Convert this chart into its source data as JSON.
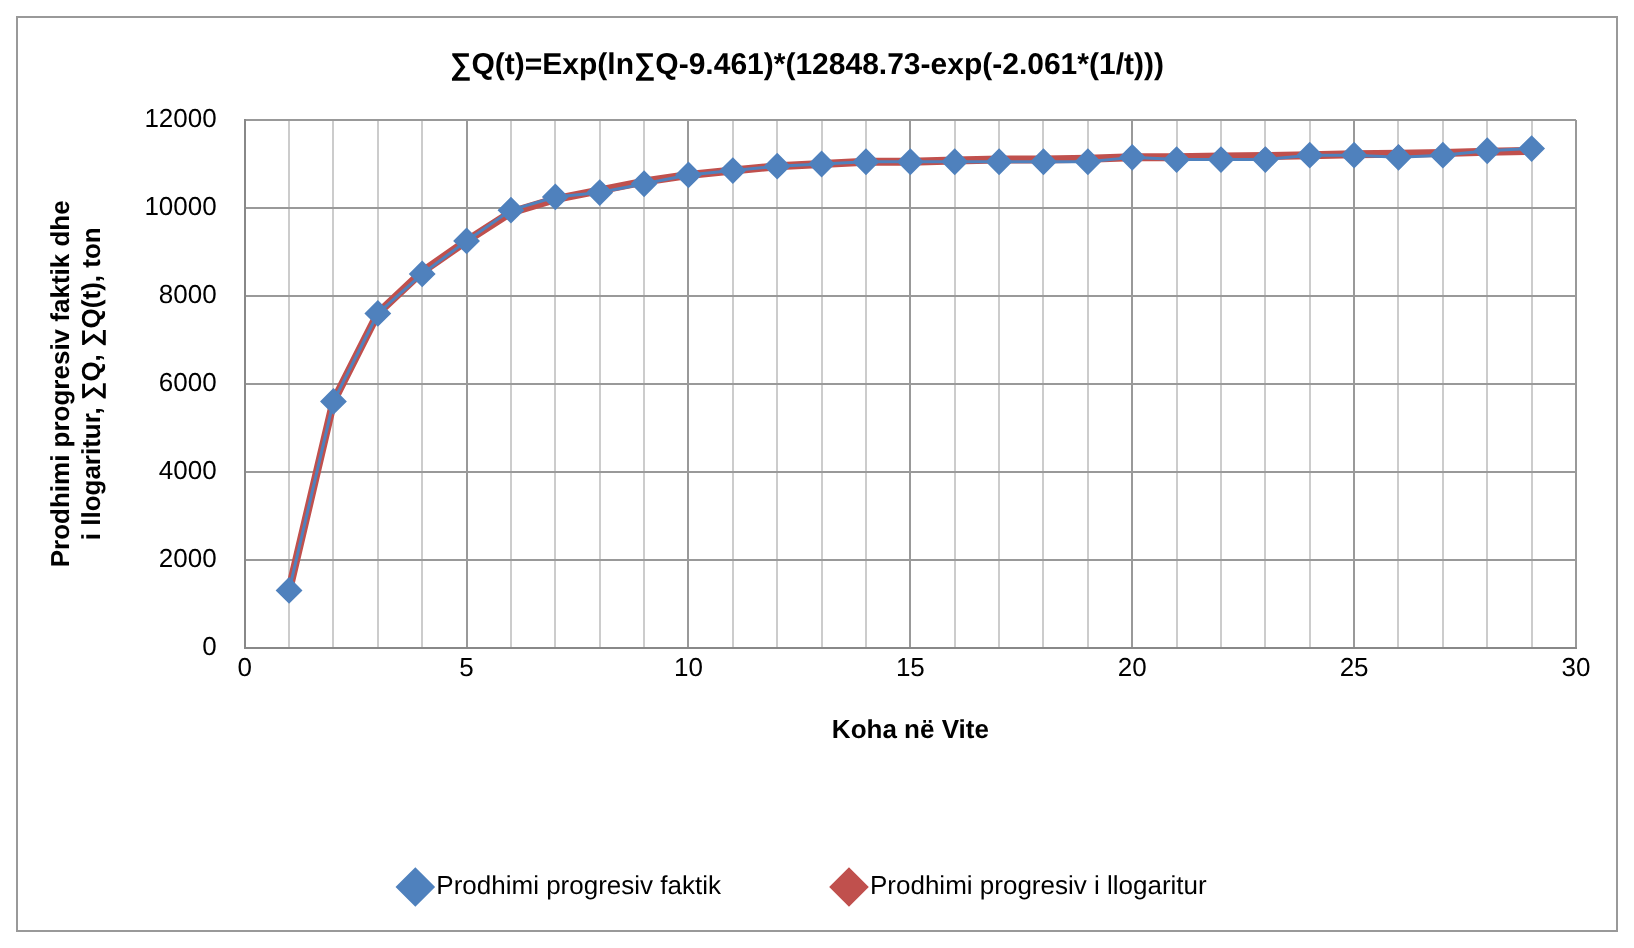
{
  "chart_data": {
    "type": "line",
    "title": "∑Q(t)=Exp(ln∑Q-9.461)*(12848.73-exp(-2.061*(1/t)))",
    "xlabel": "Koha në Vite",
    "ylabel": "Prodhimi progresiv faktik dhe i llogaritur, ∑Q, ∑Q(t), ton",
    "x": [
      1,
      2,
      3,
      4,
      5,
      6,
      7,
      8,
      9,
      10,
      11,
      12,
      13,
      14,
      15,
      16,
      17,
      18,
      19,
      20,
      21,
      22,
      23,
      24,
      25,
      26,
      27,
      28,
      29
    ],
    "series": [
      {
        "name": "Prodhimi progresiv faktik",
        "color": "#4f81bd",
        "values": [
          1300,
          5600,
          7600,
          8500,
          9250,
          9950,
          10250,
          10350,
          10550,
          10750,
          10850,
          10950,
          11000,
          11050,
          11050,
          11050,
          11050,
          11050,
          11050,
          11150,
          11100,
          11100,
          11100,
          11200,
          11200,
          11150,
          11200,
          11300,
          11350
        ]
      },
      {
        "name": "Prodhimi progresiv i llogaritur",
        "color": "#c0504d",
        "values": [
          1300,
          5600,
          7600,
          8550,
          9250,
          9900,
          10200,
          10400,
          10600,
          10750,
          10850,
          10950,
          11000,
          11050,
          11050,
          11080,
          11100,
          11100,
          11120,
          11150,
          11150,
          11170,
          11180,
          11200,
          11220,
          11230,
          11250,
          11280,
          11300
        ]
      }
    ],
    "xlim": [
      0,
      30
    ],
    "xticks": [
      0,
      5,
      10,
      15,
      20,
      25,
      30
    ],
    "ylim": [
      0,
      12000
    ],
    "yticks": [
      0,
      2000,
      4000,
      6000,
      8000,
      10000,
      12000
    ],
    "grid": true,
    "legend": "bottom",
    "marker": "diamond",
    "line_style": "solid"
  }
}
